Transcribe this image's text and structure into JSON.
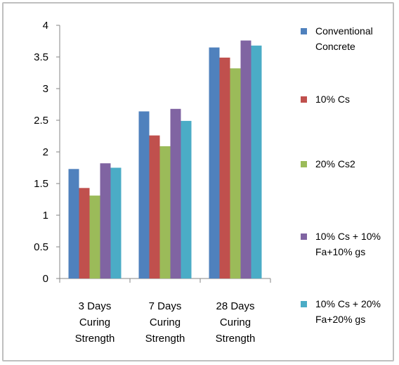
{
  "chart_data": {
    "type": "bar",
    "title": "",
    "xlabel": "",
    "ylabel": "",
    "ylim": [
      0,
      4
    ],
    "yticks": [
      0,
      0.5,
      1,
      1.5,
      2,
      2.5,
      3,
      3.5,
      4
    ],
    "ytick_labels": [
      "0",
      "0.5",
      "1",
      "1.5",
      "2",
      "2.5",
      "3",
      "3.5",
      "4"
    ],
    "grid": false,
    "legend_position": "right",
    "categories": [
      [
        "3 Days",
        "Curing",
        "Strength"
      ],
      [
        "7 Days",
        "Curing",
        "Strength"
      ],
      [
        "28 Days",
        "Curing",
        "Strength"
      ]
    ],
    "series": [
      {
        "name": [
          "Conventional",
          "Concrete"
        ],
        "color": "#4f81bd",
        "values": [
          1.73,
          2.64,
          3.65
        ]
      },
      {
        "name": [
          "10% Cs"
        ],
        "color": "#c0504d",
        "values": [
          1.43,
          2.26,
          3.49
        ]
      },
      {
        "name": [
          "20% Cs2"
        ],
        "color": "#9bbb59",
        "values": [
          1.31,
          2.09,
          3.32
        ]
      },
      {
        "name": [
          "10% Cs + 10%",
          "Fa+10% gs"
        ],
        "color": "#8064a2",
        "values": [
          1.82,
          2.68,
          3.76
        ]
      },
      {
        "name": [
          "10% Cs + 20%",
          "Fa+20% gs"
        ],
        "color": "#4bacc6",
        "values": [
          1.75,
          2.49,
          3.68
        ]
      }
    ]
  }
}
